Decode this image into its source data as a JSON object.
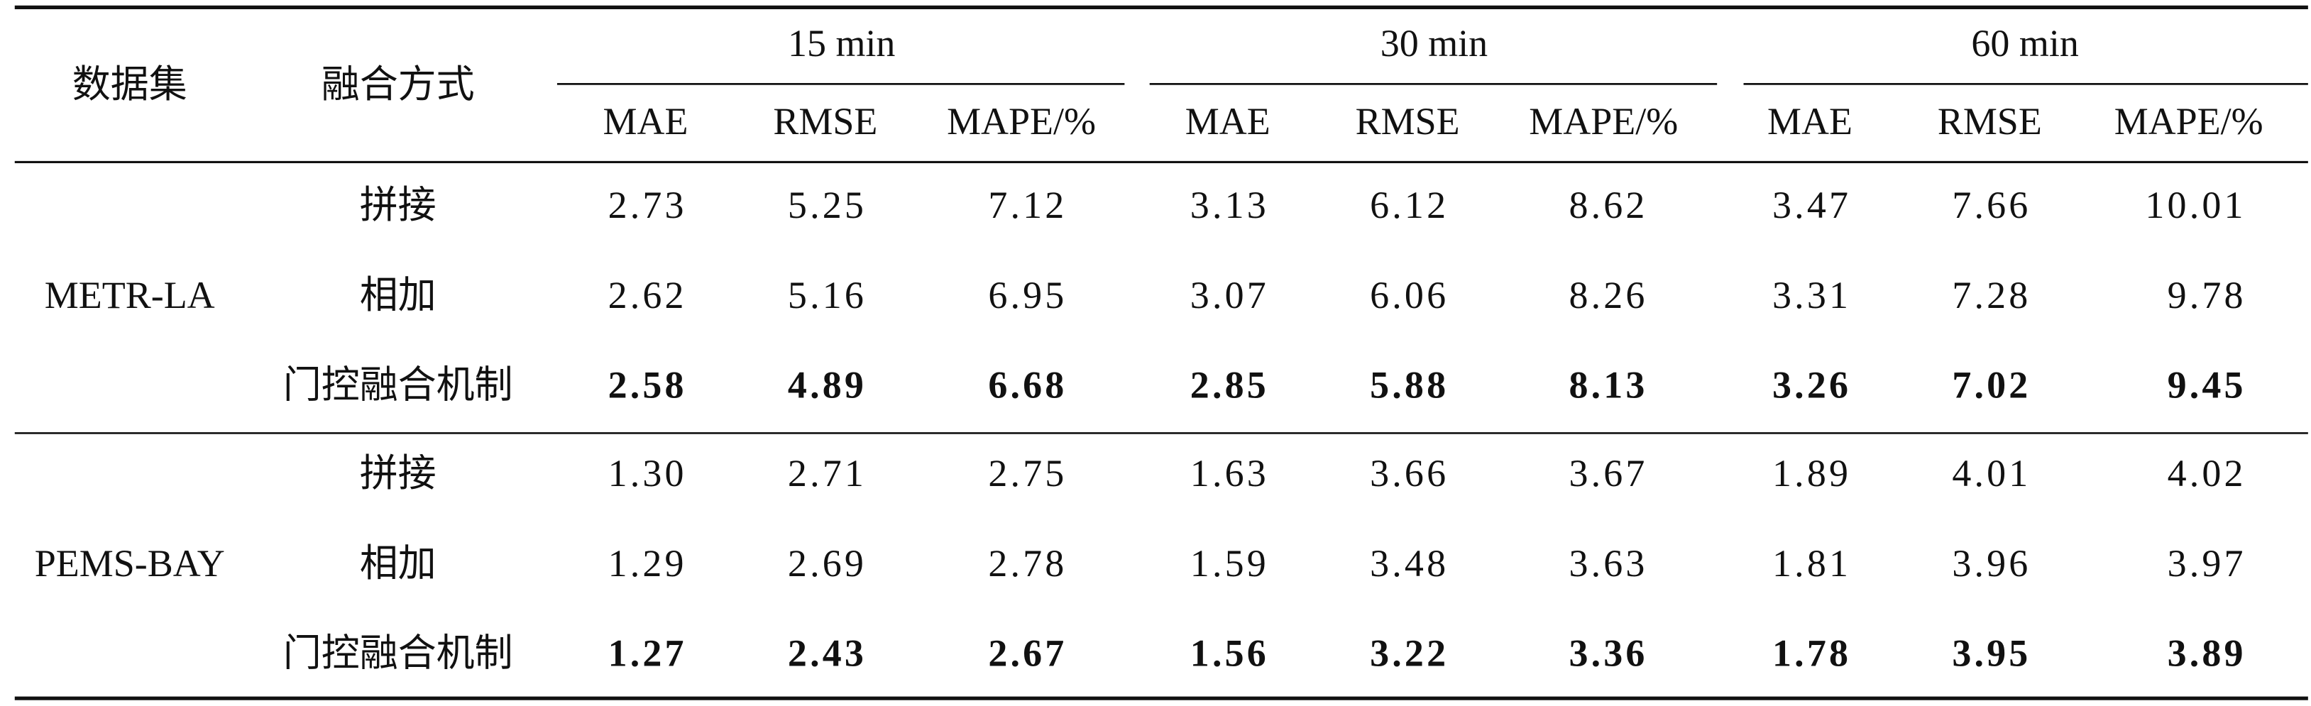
{
  "table": {
    "header": {
      "dataset": "数据集",
      "method": "融合方式",
      "horizons": [
        {
          "label": "15 min",
          "metrics": [
            "MAE",
            "RMSE",
            "MAPE/%"
          ]
        },
        {
          "label": "30 min",
          "metrics": [
            "MAE",
            "RMSE",
            "MAPE/%"
          ]
        },
        {
          "label": "60 min",
          "metrics": [
            "MAE",
            "RMSE",
            "MAPE/%"
          ]
        }
      ]
    },
    "groups": [
      {
        "dataset": "METR-LA",
        "rows": [
          {
            "method": "拼接",
            "values": [
              "2.73",
              "5.25",
              "7.12",
              "3.13",
              "6.12",
              "8.62",
              "3.47",
              "7.66",
              "10.01"
            ]
          },
          {
            "method": "相加",
            "values": [
              "2.62",
              "5.16",
              "6.95",
              "3.07",
              "6.06",
              "8.26",
              "3.31",
              "7.28",
              "9.78"
            ]
          },
          {
            "method": "门控融合机制",
            "bold": true,
            "values": [
              "2.58",
              "4.89",
              "6.68",
              "2.85",
              "5.88",
              "8.13",
              "3.26",
              "7.02",
              "9.45"
            ]
          }
        ]
      },
      {
        "dataset": "PEMS-BAY",
        "rows": [
          {
            "method": "拼接",
            "values": [
              "1.30",
              "2.71",
              "2.75",
              "1.63",
              "3.66",
              "3.67",
              "1.89",
              "4.01",
              "4.02"
            ]
          },
          {
            "method": "相加",
            "values": [
              "1.29",
              "2.69",
              "2.78",
              "1.59",
              "3.48",
              "3.63",
              "1.81",
              "3.96",
              "3.97"
            ]
          },
          {
            "method": "门控融合机制",
            "bold": true,
            "values": [
              "1.27",
              "2.43",
              "2.67",
              "1.56",
              "3.22",
              "3.36",
              "1.78",
              "3.95",
              "3.89"
            ]
          }
        ]
      }
    ]
  }
}
